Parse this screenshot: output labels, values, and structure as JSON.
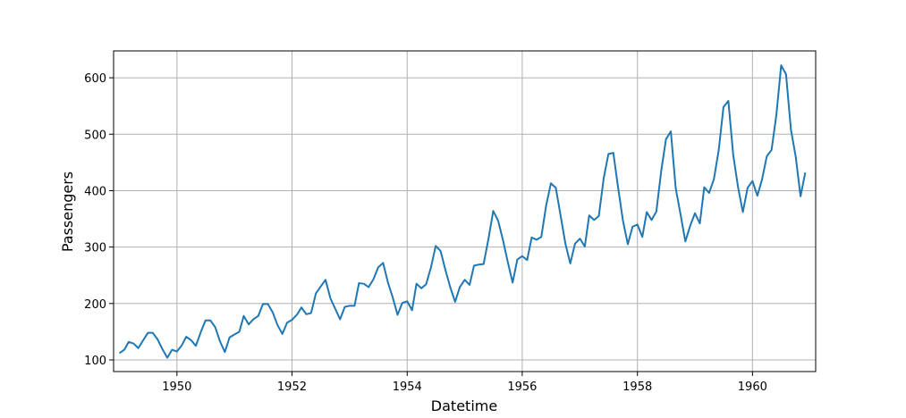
{
  "chart_data": {
    "type": "line",
    "xlabel": "Datetime",
    "ylabel": "Passengers",
    "x_ticks": [
      1950,
      1952,
      1954,
      1956,
      1958,
      1960
    ],
    "y_ticks": [
      100,
      200,
      300,
      400,
      500,
      600
    ],
    "xlim": [
      "1948-11-25",
      "1961-02-05"
    ],
    "ylim": [
      79.4,
      647.6
    ],
    "grid": true,
    "series": [
      {
        "color": "#1f77b4",
        "x": [
          "1949-01",
          "1949-02",
          "1949-03",
          "1949-04",
          "1949-05",
          "1949-06",
          "1949-07",
          "1949-08",
          "1949-09",
          "1949-10",
          "1949-11",
          "1949-12",
          "1950-01",
          "1950-02",
          "1950-03",
          "1950-04",
          "1950-05",
          "1950-06",
          "1950-07",
          "1950-08",
          "1950-09",
          "1950-10",
          "1950-11",
          "1950-12",
          "1951-01",
          "1951-02",
          "1951-03",
          "1951-04",
          "1951-05",
          "1951-06",
          "1951-07",
          "1951-08",
          "1951-09",
          "1951-10",
          "1951-11",
          "1951-12",
          "1952-01",
          "1952-02",
          "1952-03",
          "1952-04",
          "1952-05",
          "1952-06",
          "1952-07",
          "1952-08",
          "1952-09",
          "1952-10",
          "1952-11",
          "1952-12",
          "1953-01",
          "1953-02",
          "1953-03",
          "1953-04",
          "1953-05",
          "1953-06",
          "1953-07",
          "1953-08",
          "1953-09",
          "1953-10",
          "1953-11",
          "1953-12",
          "1954-01",
          "1954-02",
          "1954-03",
          "1954-04",
          "1954-05",
          "1954-06",
          "1954-07",
          "1954-08",
          "1954-09",
          "1954-10",
          "1954-11",
          "1954-12",
          "1955-01",
          "1955-02",
          "1955-03",
          "1955-04",
          "1955-05",
          "1955-06",
          "1955-07",
          "1955-08",
          "1955-09",
          "1955-10",
          "1955-11",
          "1955-12",
          "1956-01",
          "1956-02",
          "1956-03",
          "1956-04",
          "1956-05",
          "1956-06",
          "1956-07",
          "1956-08",
          "1956-09",
          "1956-10",
          "1956-11",
          "1956-12",
          "1957-01",
          "1957-02",
          "1957-03",
          "1957-04",
          "1957-05",
          "1957-06",
          "1957-07",
          "1957-08",
          "1957-09",
          "1957-10",
          "1957-11",
          "1957-12",
          "1958-01",
          "1958-02",
          "1958-03",
          "1958-04",
          "1958-05",
          "1958-06",
          "1958-07",
          "1958-08",
          "1958-09",
          "1958-10",
          "1958-11",
          "1958-12",
          "1959-01",
          "1959-02",
          "1959-03",
          "1959-04",
          "1959-05",
          "1959-06",
          "1959-07",
          "1959-08",
          "1959-09",
          "1959-10",
          "1959-11",
          "1959-12",
          "1960-01",
          "1960-02",
          "1960-03",
          "1960-04",
          "1960-05",
          "1960-06",
          "1960-07",
          "1960-08",
          "1960-09",
          "1960-10",
          "1960-11",
          "1960-12"
        ],
        "values": [
          112,
          118,
          132,
          129,
          121,
          135,
          148,
          148,
          136,
          119,
          104,
          118,
          115,
          126,
          141,
          135,
          125,
          149,
          170,
          170,
          158,
          133,
          114,
          140,
          145,
          150,
          178,
          163,
          172,
          178,
          199,
          199,
          184,
          162,
          146,
          166,
          171,
          180,
          193,
          181,
          183,
          218,
          230,
          242,
          209,
          191,
          172,
          194,
          196,
          196,
          236,
          235,
          229,
          243,
          264,
          272,
          237,
          211,
          180,
          201,
          204,
          188,
          235,
          227,
          234,
          264,
          302,
          293,
          259,
          229,
          203,
          229,
          242,
          233,
          267,
          269,
          270,
          315,
          364,
          347,
          312,
          274,
          237,
          278,
          284,
          277,
          317,
          313,
          318,
          374,
          413,
          405,
          355,
          306,
          271,
          306,
          315,
          301,
          356,
          348,
          355,
          422,
          465,
          467,
          404,
          347,
          305,
          336,
          340,
          318,
          362,
          348,
          363,
          435,
          491,
          505,
          404,
          359,
          310,
          337,
          360,
          342,
          406,
          396,
          420,
          472,
          548,
          559,
          463,
          407,
          362,
          405,
          417,
          391,
          419,
          461,
          472,
          535,
          622,
          606,
          508,
          461,
          390,
          432
        ]
      }
    ]
  }
}
